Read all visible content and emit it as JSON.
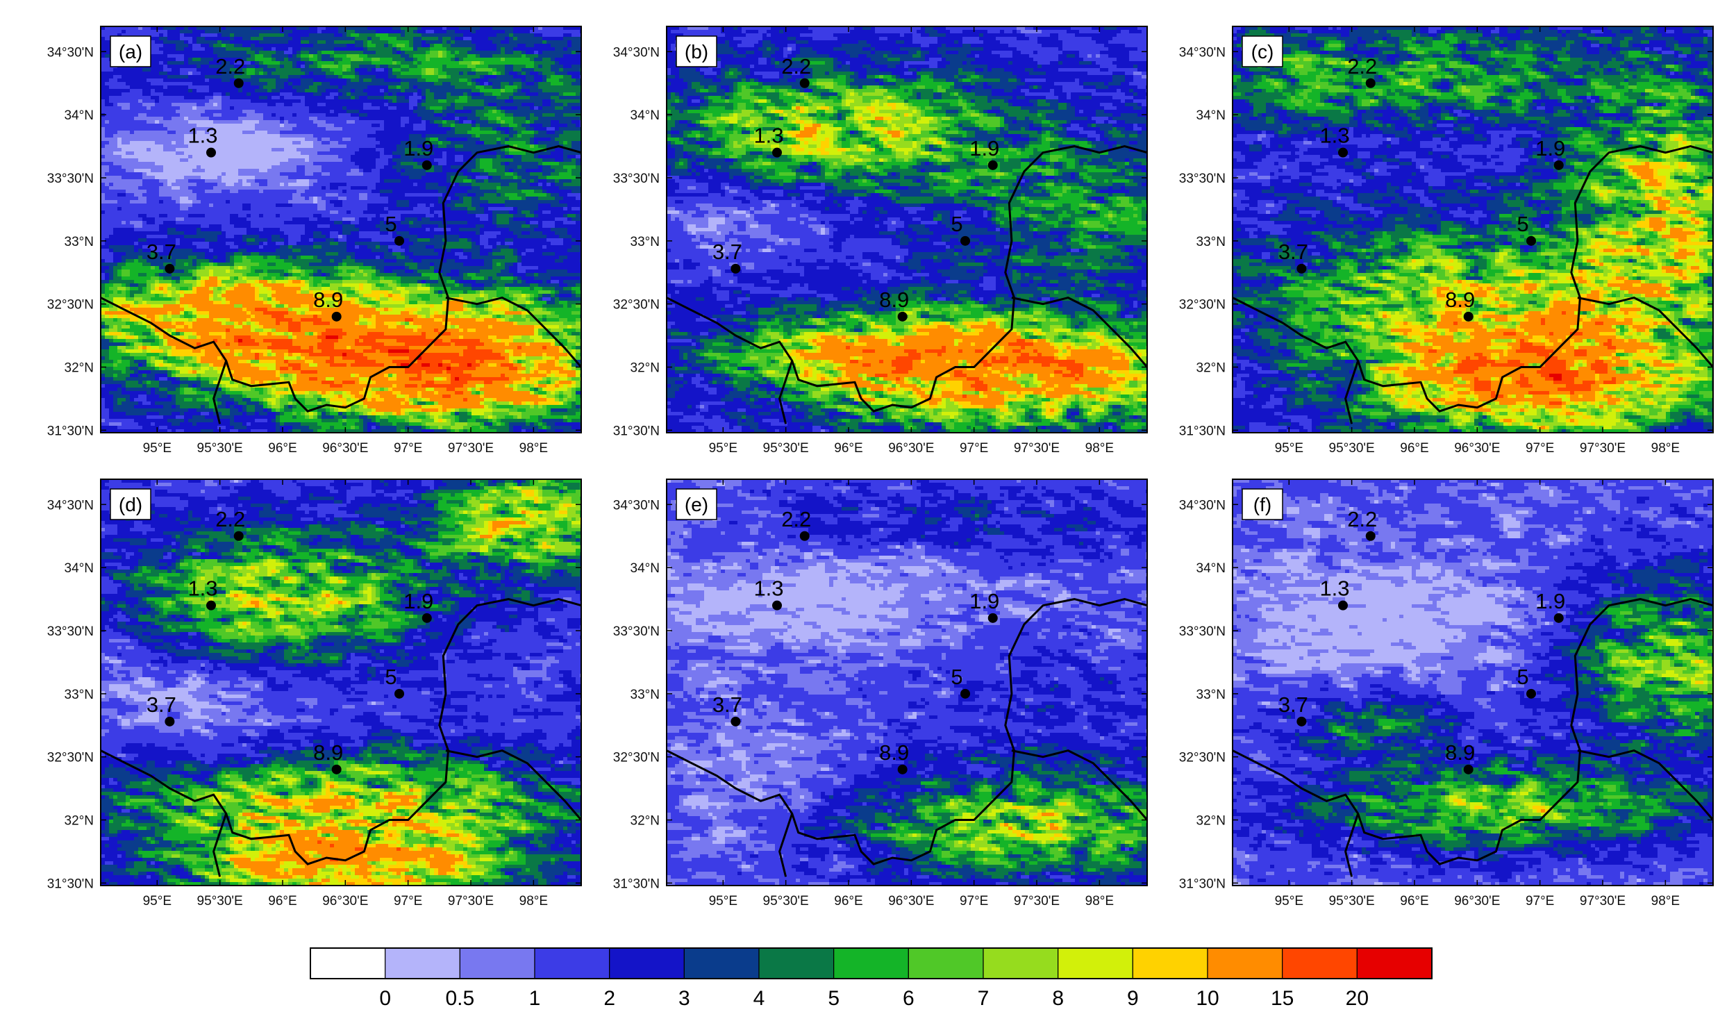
{
  "panels": [
    {
      "letter": "(a)",
      "field": {
        "base": 1.6,
        "blobs": [
          [
            0.5,
            0.75,
            0.45,
            0.15,
            8
          ],
          [
            0.7,
            0.85,
            0.35,
            0.12,
            10
          ],
          [
            0.2,
            0.7,
            0.25,
            0.12,
            5
          ],
          [
            0.85,
            0.3,
            0.25,
            0.2,
            3
          ],
          [
            0.55,
            0.08,
            0.4,
            0.1,
            3
          ]
        ],
        "lowzone": [
          [
            0.25,
            0.3,
            0.3,
            0.12,
            -1.5
          ]
        ]
      }
    },
    {
      "letter": "(b)",
      "field": {
        "base": 1.8,
        "blobs": [
          [
            0.35,
            0.25,
            0.35,
            0.14,
            6
          ],
          [
            0.7,
            0.85,
            0.35,
            0.12,
            11
          ],
          [
            0.85,
            0.45,
            0.25,
            0.2,
            3
          ],
          [
            0.4,
            0.8,
            0.3,
            0.1,
            5
          ]
        ],
        "lowzone": [
          [
            0.15,
            0.45,
            0.2,
            0.12,
            -1.5
          ]
        ]
      }
    },
    {
      "letter": "(c)",
      "field": {
        "base": 2.0,
        "blobs": [
          [
            0.62,
            0.85,
            0.3,
            0.14,
            12
          ],
          [
            0.9,
            0.45,
            0.2,
            0.3,
            6
          ],
          [
            0.3,
            0.12,
            0.45,
            0.1,
            4
          ],
          [
            0.45,
            0.65,
            0.4,
            0.15,
            5
          ]
        ],
        "lowzone": []
      }
    },
    {
      "letter": "(d)",
      "field": {
        "base": 1.6,
        "blobs": [
          [
            0.38,
            0.28,
            0.3,
            0.15,
            6
          ],
          [
            0.88,
            0.1,
            0.18,
            0.12,
            7
          ],
          [
            0.5,
            0.8,
            0.45,
            0.12,
            7
          ],
          [
            0.5,
            0.95,
            0.3,
            0.08,
            9
          ]
        ],
        "lowzone": [
          [
            0.2,
            0.55,
            0.25,
            0.15,
            -1.3
          ]
        ]
      }
    },
    {
      "letter": "(e)",
      "field": {
        "base": 1.2,
        "blobs": [
          [
            0.75,
            0.85,
            0.35,
            0.12,
            6
          ],
          [
            0.6,
            0.1,
            0.4,
            0.08,
            1.5
          ],
          [
            0.8,
            0.6,
            0.3,
            0.2,
            1
          ]
        ],
        "lowzone": [
          [
            0.3,
            0.3,
            0.4,
            0.15,
            -1.0
          ],
          [
            0.2,
            0.75,
            0.2,
            0.15,
            -0.8
          ]
        ]
      }
    },
    {
      "letter": "(f)",
      "field": {
        "base": 1.2,
        "blobs": [
          [
            0.92,
            0.45,
            0.2,
            0.2,
            6
          ],
          [
            0.55,
            0.8,
            0.35,
            0.1,
            6
          ],
          [
            0.3,
            0.6,
            0.2,
            0.08,
            3
          ]
        ],
        "lowzone": [
          [
            0.3,
            0.35,
            0.35,
            0.2,
            -1.0
          ]
        ]
      }
    }
  ],
  "lon_ticks": [
    "95°E",
    "95°30'E",
    "96°E",
    "96°30'E",
    "97°E",
    "97°30'E",
    "98°E"
  ],
  "lon_values": [
    95,
    95.5,
    96,
    96.5,
    97,
    97.5,
    98
  ],
  "lat_ticks": [
    "34°30'N",
    "34°N",
    "33°30'N",
    "33°N",
    "32°30'N",
    "32°N",
    "31°30'N"
  ],
  "lat_values": [
    34.5,
    34,
    33.5,
    33,
    32.5,
    32,
    31.5
  ],
  "stations": [
    {
      "label": "2.2",
      "lon": 95.65,
      "lat": 34.25
    },
    {
      "label": "1.3",
      "lon": 95.43,
      "lat": 33.7
    },
    {
      "label": "1.9",
      "lon": 97.15,
      "lat": 33.6
    },
    {
      "label": "5",
      "lon": 96.93,
      "lat": 33.0
    },
    {
      "label": "3.7",
      "lon": 95.1,
      "lat": 32.78
    },
    {
      "label": "8.9",
      "lon": 96.43,
      "lat": 32.4
    }
  ],
  "colorbar": {
    "labels": [
      "0",
      "0.5",
      "1",
      "2",
      "3",
      "4",
      "5",
      "6",
      "7",
      "8",
      "9",
      "10",
      "15",
      "20"
    ],
    "colors": [
      "#ffffff",
      "#b4b4fa",
      "#7878f0",
      "#3c3ce6",
      "#1414c8",
      "#0a3c8c",
      "#0a7846",
      "#14b428",
      "#50c828",
      "#96dc1e",
      "#d2f00a",
      "#ffd200",
      "#ff8c00",
      "#ff4600",
      "#e60000"
    ]
  }
}
